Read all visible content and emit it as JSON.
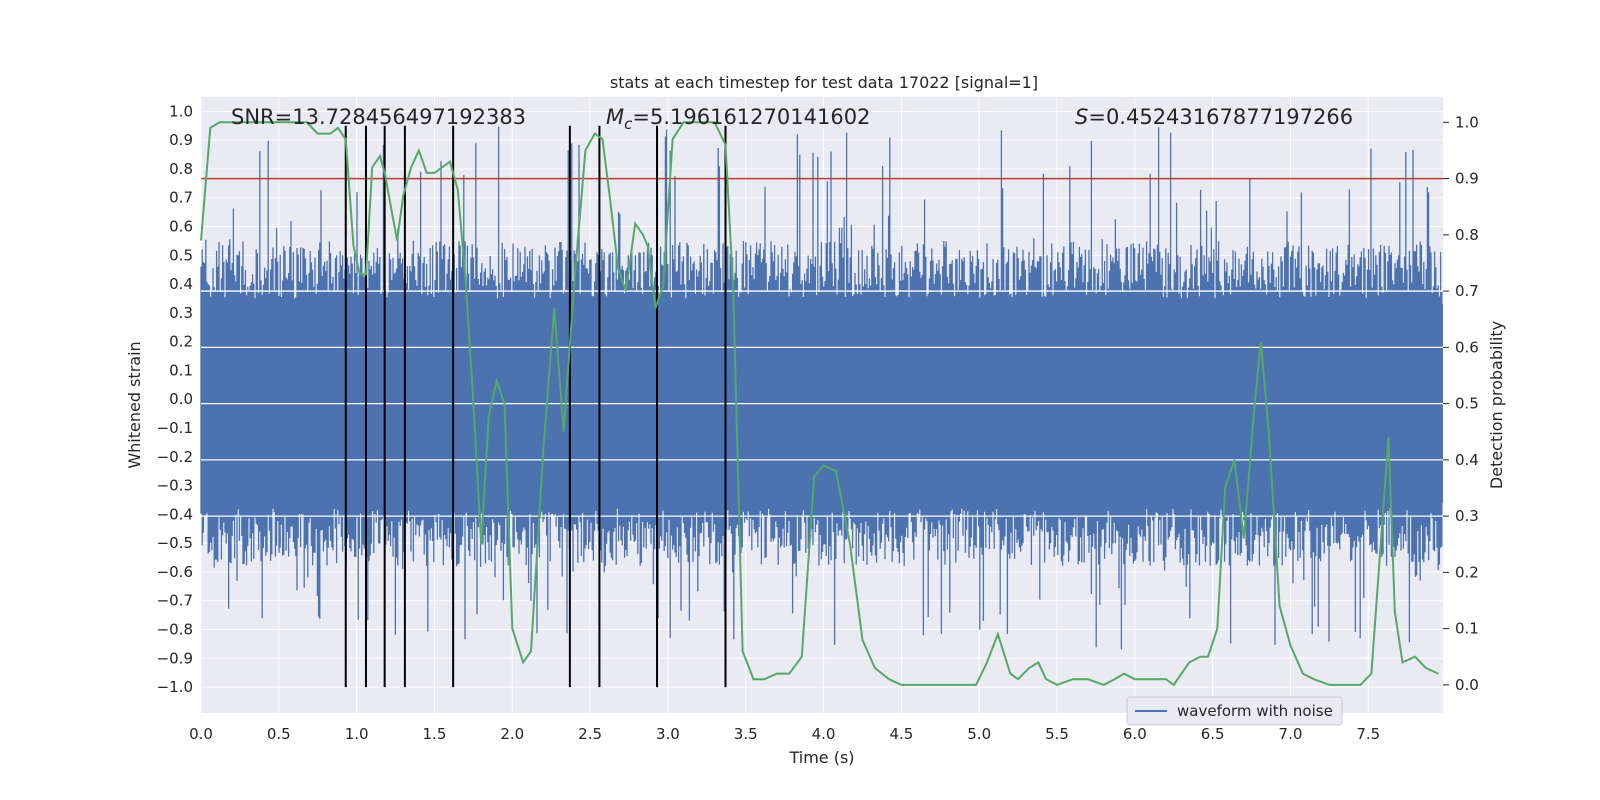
{
  "chart_data": {
    "type": "line",
    "title": "stats at each timestep for test data 17022 [signal=1]",
    "xlabel": "Time (s)",
    "ylabel_left": "Whitened strain",
    "ylabel_right": "Detection probability",
    "xlim": [
      0.0,
      7.98
    ],
    "ylim_left": [
      -1.09,
      1.05
    ],
    "ylim_right": [
      -0.05,
      1.045
    ],
    "x_ticks": [
      "0.0",
      "0.5",
      "1.0",
      "1.5",
      "2.0",
      "2.5",
      "3.0",
      "3.5",
      "4.0",
      "4.5",
      "5.0",
      "5.5",
      "6.0",
      "6.5",
      "7.0",
      "7.5"
    ],
    "y_ticks_left": [
      "1.0",
      "0.9",
      "0.8",
      "0.7",
      "0.6",
      "0.5",
      "0.4",
      "0.3",
      "0.2",
      "0.1",
      "0.0",
      "-0.1",
      "-0.2",
      "-0.3",
      "-0.4",
      "-0.5",
      "-0.6",
      "-0.7",
      "-0.8",
      "-0.9",
      "-1.0"
    ],
    "y_ticks_right": [
      "1.0",
      "0.9",
      "0.8",
      "0.7",
      "0.6",
      "0.5",
      "0.4",
      "0.3",
      "0.2",
      "0.1",
      "0.0"
    ],
    "annotations": {
      "snr": "SNR=13.728456497192383",
      "mc_symbol": "M",
      "mc_subscript": "c",
      "mc_value": "=5.196161270141602",
      "s_symbol": "S",
      "s_value": "=0.45243167877197266"
    },
    "threshold": {
      "value": 0.9,
      "axis": "right",
      "color": "#c0392b"
    },
    "event_markers": {
      "x": [
        0.93,
        1.06,
        1.18,
        1.31,
        1.62,
        2.37,
        2.56,
        2.93,
        3.37
      ],
      "y_range": [
        -1.0,
        0.95
      ],
      "color": "#000000"
    },
    "series": [
      {
        "name": "waveform with noise",
        "axis": "left",
        "color": "#4c72b0",
        "description": "dense whitened strain noise, envelope approx -0.4 to 0.37 with spikes reaching about +-0.95",
        "envelope": [
          -0.4,
          0.37
        ],
        "peak_range": [
          -0.87,
          0.95
        ]
      },
      {
        "name": "detection probability",
        "axis": "right",
        "color": "#55a868",
        "x": [
          0.0,
          0.06,
          0.12,
          0.2,
          0.3,
          0.4,
          0.5,
          0.6,
          0.68,
          0.75,
          0.83,
          0.88,
          0.93,
          0.98,
          1.02,
          1.06,
          1.1,
          1.15,
          1.18,
          1.22,
          1.26,
          1.3,
          1.35,
          1.4,
          1.45,
          1.5,
          1.55,
          1.6,
          1.65,
          1.7,
          1.75,
          1.8,
          1.85,
          1.9,
          1.95,
          2.0,
          2.07,
          2.12,
          2.2,
          2.27,
          2.33,
          2.4,
          2.47,
          2.53,
          2.58,
          2.63,
          2.68,
          2.73,
          2.79,
          2.84,
          2.87,
          2.92,
          2.97,
          3.03,
          3.1,
          3.2,
          3.3,
          3.37,
          3.42,
          3.48,
          3.55,
          3.62,
          3.7,
          3.78,
          3.86,
          3.94,
          4.0,
          4.08,
          4.17,
          4.25,
          4.33,
          4.42,
          4.5,
          4.6,
          4.7,
          4.8,
          4.9,
          4.98,
          5.05,
          5.12,
          5.2,
          5.25,
          5.32,
          5.38,
          5.43,
          5.5,
          5.6,
          5.7,
          5.8,
          5.87,
          5.93,
          6.0,
          6.1,
          6.2,
          6.25,
          6.3,
          6.35,
          6.42,
          6.47,
          6.53,
          6.58,
          6.64,
          6.7,
          6.77,
          6.81,
          6.86,
          6.93,
          7.0,
          7.08,
          7.15,
          7.25,
          7.35,
          7.45,
          7.52,
          7.58,
          7.63,
          7.67,
          7.72,
          7.8,
          7.87,
          7.95
        ],
        "y": [
          0.79,
          0.99,
          1.0,
          1.0,
          1.0,
          1.0,
          1.0,
          1.0,
          1.0,
          0.98,
          0.98,
          0.99,
          0.97,
          0.78,
          0.73,
          0.73,
          0.92,
          0.94,
          0.91,
          0.85,
          0.79,
          0.87,
          0.92,
          0.95,
          0.91,
          0.91,
          0.92,
          0.93,
          0.88,
          0.72,
          0.5,
          0.25,
          0.48,
          0.54,
          0.5,
          0.1,
          0.04,
          0.06,
          0.42,
          0.67,
          0.45,
          0.72,
          0.95,
          0.98,
          0.97,
          0.86,
          0.74,
          0.7,
          0.82,
          0.8,
          0.78,
          0.67,
          0.71,
          0.97,
          1.0,
          1.0,
          1.0,
          0.96,
          0.7,
          0.06,
          0.01,
          0.01,
          0.02,
          0.02,
          0.05,
          0.37,
          0.39,
          0.38,
          0.25,
          0.08,
          0.03,
          0.01,
          0.0,
          0.0,
          0.0,
          0.0,
          0.0,
          0.0,
          0.04,
          0.09,
          0.02,
          0.01,
          0.03,
          0.04,
          0.01,
          0.0,
          0.01,
          0.01,
          0.0,
          0.01,
          0.02,
          0.01,
          0.01,
          0.01,
          0.0,
          0.02,
          0.04,
          0.05,
          0.05,
          0.1,
          0.35,
          0.4,
          0.26,
          0.5,
          0.61,
          0.45,
          0.14,
          0.07,
          0.02,
          0.01,
          0.0,
          0.0,
          0.0,
          0.02,
          0.25,
          0.44,
          0.13,
          0.04,
          0.05,
          0.03,
          0.02
        ],
        "in_legend": false
      }
    ],
    "legend": {
      "position": "lower-right",
      "entries": [
        "waveform with noise"
      ]
    }
  }
}
